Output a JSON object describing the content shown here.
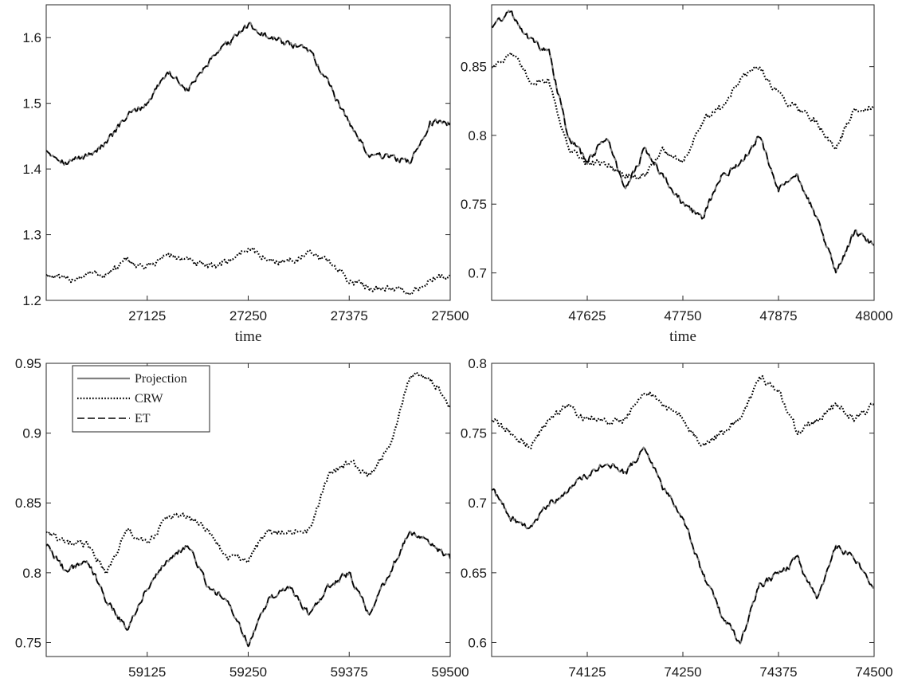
{
  "chart_data": [
    {
      "type": "line",
      "title": "",
      "xlabel": "time",
      "ylabel": "",
      "xlim": [
        27000,
        27500
      ],
      "ylim": [
        1.2,
        1.65
      ],
      "xticks": [
        27125,
        27250,
        27375,
        27500
      ],
      "yticks": [
        1.2,
        1.3,
        1.4,
        1.5,
        1.6
      ],
      "ytick_labels": [
        "1.2",
        "1.3",
        "1.4",
        "1.5",
        "1.6"
      ],
      "grid": false,
      "series": [
        {
          "name": "Projection",
          "style": "solid",
          "color": "#808080",
          "x": [
            27000,
            27025,
            27050,
            27075,
            27100,
            27125,
            27150,
            27175,
            27200,
            27225,
            27250,
            27275,
            27300,
            27325,
            27350,
            27375,
            27400,
            27425,
            27450,
            27475,
            27500
          ],
          "y": [
            1.43,
            1.41,
            1.42,
            1.44,
            1.48,
            1.5,
            1.55,
            1.52,
            1.56,
            1.59,
            1.62,
            1.6,
            1.59,
            1.58,
            1.53,
            1.47,
            1.42,
            1.42,
            1.41,
            1.47,
            1.47
          ]
        },
        {
          "name": "CRW",
          "style": "dotted",
          "color": "#000000",
          "x": [
            27000,
            27025,
            27050,
            27075,
            27100,
            27125,
            27150,
            27175,
            27200,
            27225,
            27250,
            27275,
            27300,
            27325,
            27350,
            27375,
            27400,
            27425,
            27450,
            27475,
            27500
          ],
          "y": [
            1.24,
            1.23,
            1.24,
            1.24,
            1.26,
            1.25,
            1.27,
            1.26,
            1.25,
            1.26,
            1.28,
            1.26,
            1.26,
            1.27,
            1.26,
            1.23,
            1.22,
            1.22,
            1.21,
            1.23,
            1.24
          ]
        },
        {
          "name": "ET",
          "style": "dashed",
          "color": "#000000",
          "x": [
            27000,
            27025,
            27050,
            27075,
            27100,
            27125,
            27150,
            27175,
            27200,
            27225,
            27250,
            27275,
            27300,
            27325,
            27350,
            27375,
            27400,
            27425,
            27450,
            27475,
            27500
          ],
          "y": [
            1.43,
            1.41,
            1.42,
            1.44,
            1.48,
            1.5,
            1.55,
            1.52,
            1.56,
            1.59,
            1.62,
            1.6,
            1.59,
            1.58,
            1.53,
            1.47,
            1.42,
            1.42,
            1.41,
            1.47,
            1.47
          ]
        }
      ]
    },
    {
      "type": "line",
      "title": "",
      "xlabel": "time",
      "ylabel": "",
      "xlim": [
        47500,
        48000
      ],
      "ylim": [
        0.68,
        0.895
      ],
      "xticks": [
        47625,
        47750,
        47875,
        48000
      ],
      "yticks": [
        0.7,
        0.75,
        0.8,
        0.85
      ],
      "ytick_labels": [
        "0.7",
        "0.75",
        "0.8",
        "0.85"
      ],
      "grid": false,
      "series": [
        {
          "name": "Projection",
          "style": "solid",
          "color": "#808080",
          "x": [
            47500,
            47525,
            47550,
            47575,
            47600,
            47625,
            47650,
            47675,
            47700,
            47725,
            47750,
            47775,
            47800,
            47825,
            47850,
            47875,
            47900,
            47925,
            47950,
            47975,
            48000
          ],
          "y": [
            0.88,
            0.89,
            0.87,
            0.86,
            0.8,
            0.78,
            0.8,
            0.76,
            0.79,
            0.77,
            0.75,
            0.74,
            0.77,
            0.78,
            0.8,
            0.76,
            0.77,
            0.74,
            0.7,
            0.73,
            0.72
          ]
        },
        {
          "name": "CRW",
          "style": "dotted",
          "color": "#000000",
          "x": [
            47500,
            47525,
            47550,
            47575,
            47600,
            47625,
            47650,
            47675,
            47700,
            47725,
            47750,
            47775,
            47800,
            47825,
            47850,
            47875,
            47900,
            47925,
            47950,
            47975,
            48000
          ],
          "y": [
            0.85,
            0.86,
            0.84,
            0.84,
            0.79,
            0.78,
            0.78,
            0.77,
            0.77,
            0.79,
            0.78,
            0.81,
            0.82,
            0.84,
            0.85,
            0.83,
            0.82,
            0.81,
            0.79,
            0.82,
            0.82
          ]
        },
        {
          "name": "ET",
          "style": "dashed",
          "color": "#000000",
          "x": [
            47500,
            47525,
            47550,
            47575,
            47600,
            47625,
            47650,
            47675,
            47700,
            47725,
            47750,
            47775,
            47800,
            47825,
            47850,
            47875,
            47900,
            47925,
            47950,
            47975,
            48000
          ],
          "y": [
            0.88,
            0.89,
            0.87,
            0.86,
            0.8,
            0.78,
            0.8,
            0.76,
            0.79,
            0.77,
            0.75,
            0.74,
            0.77,
            0.78,
            0.8,
            0.76,
            0.77,
            0.74,
            0.7,
            0.73,
            0.72
          ]
        }
      ]
    },
    {
      "type": "line",
      "title": "",
      "xlabel": "",
      "ylabel": "",
      "xlim": [
        59000,
        59500
      ],
      "ylim": [
        0.74,
        0.95
      ],
      "xticks": [
        59125,
        59250,
        59375,
        59500
      ],
      "yticks": [
        0.75,
        0.8,
        0.85,
        0.9,
        0.95
      ],
      "ytick_labels": [
        "0.75",
        "0.8",
        "0.85",
        "0.9",
        "0.95"
      ],
      "grid": false,
      "legend": {
        "placement": "top-left",
        "entries": [
          "Projection",
          "CRW",
          "ET"
        ]
      },
      "series": [
        {
          "name": "Projection",
          "style": "solid",
          "color": "#808080",
          "x": [
            59000,
            59025,
            59050,
            59075,
            59100,
            59125,
            59150,
            59175,
            59200,
            59225,
            59250,
            59275,
            59300,
            59325,
            59350,
            59375,
            59400,
            59425,
            59450,
            59475,
            59500
          ],
          "y": [
            0.82,
            0.8,
            0.81,
            0.78,
            0.76,
            0.79,
            0.81,
            0.82,
            0.79,
            0.78,
            0.75,
            0.78,
            0.79,
            0.77,
            0.79,
            0.8,
            0.77,
            0.8,
            0.83,
            0.82,
            0.81
          ]
        },
        {
          "name": "CRW",
          "style": "dotted",
          "color": "#000000",
          "x": [
            59000,
            59025,
            59050,
            59075,
            59100,
            59125,
            59150,
            59175,
            59200,
            59225,
            59250,
            59275,
            59300,
            59325,
            59350,
            59375,
            59400,
            59425,
            59450,
            59475,
            59500
          ],
          "y": [
            0.83,
            0.82,
            0.82,
            0.8,
            0.83,
            0.82,
            0.84,
            0.84,
            0.83,
            0.81,
            0.81,
            0.83,
            0.83,
            0.83,
            0.87,
            0.88,
            0.87,
            0.89,
            0.94,
            0.94,
            0.92
          ]
        },
        {
          "name": "ET",
          "style": "dashed",
          "color": "#000000",
          "x": [
            59000,
            59025,
            59050,
            59075,
            59100,
            59125,
            59150,
            59175,
            59200,
            59225,
            59250,
            59275,
            59300,
            59325,
            59350,
            59375,
            59400,
            59425,
            59450,
            59475,
            59500
          ],
          "y": [
            0.82,
            0.8,
            0.81,
            0.78,
            0.76,
            0.79,
            0.81,
            0.82,
            0.79,
            0.78,
            0.75,
            0.78,
            0.79,
            0.77,
            0.79,
            0.8,
            0.77,
            0.8,
            0.83,
            0.82,
            0.81
          ]
        }
      ]
    },
    {
      "type": "line",
      "title": "",
      "xlabel": "",
      "ylabel": "",
      "xlim": [
        74000,
        74500
      ],
      "ylim": [
        0.59,
        0.8
      ],
      "xticks": [
        74125,
        74250,
        74375,
        74500
      ],
      "yticks": [
        0.6,
        0.65,
        0.7,
        0.75,
        0.8
      ],
      "ytick_labels": [
        "0.6",
        "0.65",
        "0.7",
        "0.75",
        "0.8"
      ],
      "grid": false,
      "series": [
        {
          "name": "Projection",
          "style": "solid",
          "color": "#808080",
          "x": [
            74000,
            74025,
            74050,
            74075,
            74100,
            74125,
            74150,
            74175,
            74200,
            74225,
            74250,
            74275,
            74300,
            74325,
            74350,
            74375,
            74400,
            74425,
            74450,
            74475,
            74500
          ],
          "y": [
            0.71,
            0.69,
            0.68,
            0.7,
            0.71,
            0.72,
            0.73,
            0.72,
            0.74,
            0.71,
            0.69,
            0.65,
            0.62,
            0.6,
            0.64,
            0.65,
            0.66,
            0.63,
            0.67,
            0.66,
            0.64
          ]
        },
        {
          "name": "CRW",
          "style": "dotted",
          "color": "#000000",
          "x": [
            74000,
            74025,
            74050,
            74075,
            74100,
            74125,
            74150,
            74175,
            74200,
            74225,
            74250,
            74275,
            74300,
            74325,
            74350,
            74375,
            74400,
            74425,
            74450,
            74475,
            74500
          ],
          "y": [
            0.76,
            0.75,
            0.74,
            0.76,
            0.77,
            0.76,
            0.76,
            0.76,
            0.78,
            0.77,
            0.76,
            0.74,
            0.75,
            0.76,
            0.79,
            0.78,
            0.75,
            0.76,
            0.77,
            0.76,
            0.77
          ]
        },
        {
          "name": "ET",
          "style": "dashed",
          "color": "#000000",
          "x": [
            74000,
            74025,
            74050,
            74075,
            74100,
            74125,
            74150,
            74175,
            74200,
            74225,
            74250,
            74275,
            74300,
            74325,
            74350,
            74375,
            74400,
            74425,
            74450,
            74475,
            74500
          ],
          "y": [
            0.71,
            0.69,
            0.68,
            0.7,
            0.71,
            0.72,
            0.73,
            0.72,
            0.74,
            0.71,
            0.69,
            0.65,
            0.62,
            0.6,
            0.64,
            0.65,
            0.66,
            0.63,
            0.67,
            0.66,
            0.64
          ]
        }
      ]
    }
  ]
}
